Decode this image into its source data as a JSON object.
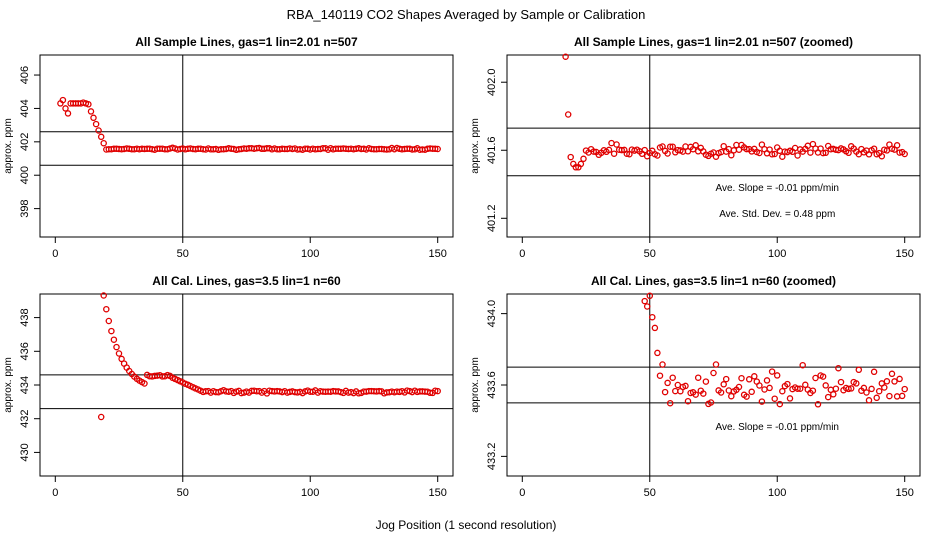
{
  "title": "RBA_140119  CO2 Shapes Averaged by Sample or Calibration",
  "xlabel": "Jog Position (1 second resolution)",
  "chart_data": [
    {
      "type": "scatter",
      "title": "All Sample Lines, gas=1 lin=2.01 n=507",
      "ylabel": "approx. ppm",
      "xlim": [
        -6,
        156
      ],
      "ylim": [
        396.3,
        407.2
      ],
      "xticks": [
        0,
        50,
        100,
        150
      ],
      "yticks": [
        398,
        400,
        402,
        404,
        406
      ],
      "vline": 50,
      "hlines": [
        402.6,
        400.6
      ],
      "annotations": [],
      "series": [
        {
          "color": "#e00000",
          "x": [],
          "y": []
        }
      ]
    },
    {
      "type": "scatter",
      "title": "All Sample Lines, gas=1 lin=2.01 n=507 (zoomed)",
      "ylabel": "approx. ppm",
      "xlim": [
        -6,
        156
      ],
      "ylim": [
        401.09,
        402.16
      ],
      "xticks": [
        0,
        50,
        100,
        150
      ],
      "yticks": [
        401.2,
        401.6,
        402.0
      ],
      "vline": 50,
      "hlines": [
        401.73,
        401.45
      ],
      "annotations": [
        "Ave. Slope =  -0.01  ppm/min",
        "Ave. Std. Dev. =  0.48  ppm"
      ],
      "series": [
        {
          "color": "#e00000",
          "x": [],
          "y": []
        }
      ]
    },
    {
      "type": "scatter",
      "title": "All Cal. Lines, gas=3.5 lin=1 n=60",
      "ylabel": "approx. ppm",
      "xlim": [
        -6,
        156
      ],
      "ylim": [
        428.6,
        439.4
      ],
      "xticks": [
        0,
        50,
        100,
        150
      ],
      "yticks": [
        430,
        432,
        434,
        436,
        438
      ],
      "vline": 50,
      "hlines": [
        434.6,
        432.6
      ],
      "annotations": [],
      "series": [
        {
          "color": "#e00000",
          "x": [],
          "y": []
        }
      ]
    },
    {
      "type": "scatter",
      "title": "All Cal. Lines, gas=3.5 lin=1 n=60 (zoomed)",
      "ylabel": "approx. ppm",
      "xlim": [
        -6,
        156
      ],
      "ylim": [
        433.09,
        434.11
      ],
      "xticks": [
        0,
        50,
        100,
        150
      ],
      "yticks": [
        433.2,
        433.6,
        434.0
      ],
      "vline": 50,
      "hlines": [
        433.7,
        433.5
      ],
      "annotations": [
        "Ave. Slope =  -0.01  ppm/min"
      ],
      "series": [
        {
          "color": "#e00000",
          "x": [],
          "y": []
        }
      ]
    }
  ]
}
